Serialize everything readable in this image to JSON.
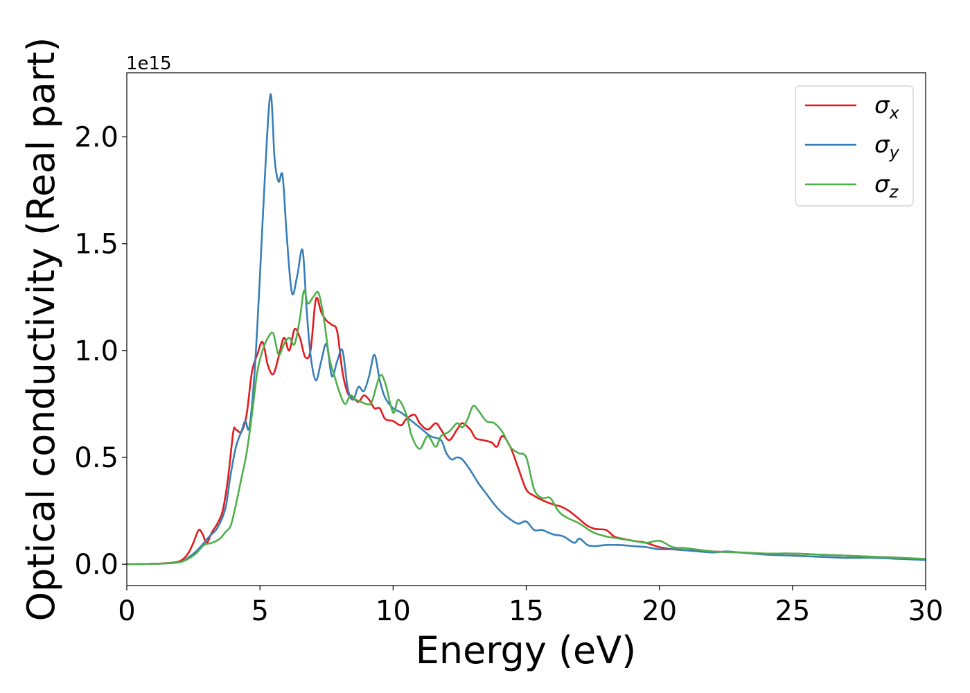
{
  "chart_data": {
    "type": "line",
    "xlabel": "Energy (eV)",
    "ylabel": "Optical conductivity (Real part)",
    "y_offset_label": "1e15",
    "xlim": [
      0,
      30
    ],
    "ylim": [
      -0.1,
      2.3
    ],
    "x_ticks": [
      0,
      5,
      10,
      15,
      20,
      25,
      30
    ],
    "x_tick_labels": [
      "0",
      "5",
      "10",
      "15",
      "20",
      "25",
      "30"
    ],
    "y_ticks": [
      0.0,
      0.5,
      1.0,
      1.5,
      2.0
    ],
    "y_tick_labels": [
      "0.0",
      "0.5",
      "1.0",
      "1.5",
      "2.0"
    ],
    "grid": false,
    "legend_position": "top-right",
    "series": [
      {
        "name": "σx",
        "symbol": "σ",
        "subscript": "x",
        "color": "#e41a1c",
        "x": [
          0,
          1,
          1.5,
          2,
          2.3,
          2.5,
          2.7,
          2.85,
          3.0,
          3.2,
          3.4,
          3.6,
          3.8,
          4.0,
          4.1,
          4.3,
          4.5,
          4.7,
          4.9,
          5.1,
          5.3,
          5.5,
          5.7,
          5.9,
          6.1,
          6.3,
          6.5,
          6.7,
          6.9,
          7.1,
          7.3,
          7.5,
          7.7,
          7.9,
          8.1,
          8.3,
          8.5,
          8.7,
          8.9,
          9.1,
          9.3,
          9.5,
          9.7,
          10.0,
          10.3,
          10.5,
          10.8,
          11.0,
          11.3,
          11.6,
          11.8,
          12.1,
          12.4,
          12.6,
          12.9,
          13.1,
          13.4,
          13.7,
          13.9,
          14.1,
          14.4,
          14.7,
          15.0,
          15.3,
          15.6,
          16.0,
          16.3,
          16.6,
          17.0,
          17.3,
          17.6,
          18.0,
          18.3,
          18.6,
          19.0,
          19.5,
          20.0,
          20.5,
          21.0,
          22.0,
          23.0,
          24.0,
          25.0,
          26.0,
          27.0,
          28.0,
          29.0,
          30.0
        ],
        "values": [
          0.0,
          0.002,
          0.005,
          0.015,
          0.05,
          0.1,
          0.16,
          0.14,
          0.1,
          0.15,
          0.19,
          0.25,
          0.4,
          0.62,
          0.63,
          0.62,
          0.7,
          0.9,
          0.98,
          1.04,
          0.93,
          0.89,
          0.97,
          1.06,
          1.0,
          1.1,
          1.06,
          0.97,
          1.0,
          1.24,
          1.18,
          1.14,
          1.12,
          1.09,
          0.9,
          0.8,
          0.78,
          0.76,
          0.79,
          0.77,
          0.73,
          0.73,
          0.68,
          0.67,
          0.65,
          0.68,
          0.7,
          0.66,
          0.63,
          0.66,
          0.63,
          0.58,
          0.63,
          0.66,
          0.63,
          0.59,
          0.58,
          0.57,
          0.55,
          0.6,
          0.55,
          0.45,
          0.35,
          0.32,
          0.3,
          0.28,
          0.27,
          0.25,
          0.21,
          0.18,
          0.165,
          0.16,
          0.13,
          0.12,
          0.11,
          0.1,
          0.08,
          0.07,
          0.065,
          0.06,
          0.055,
          0.05,
          0.05,
          0.045,
          0.04,
          0.035,
          0.03,
          0.022
        ]
      },
      {
        "name": "σy",
        "symbol": "σ",
        "subscript": "y",
        "color": "#377eb8",
        "x": [
          0,
          1,
          1.5,
          2,
          2.3,
          2.6,
          2.9,
          3.1,
          3.4,
          3.7,
          3.9,
          4.1,
          4.3,
          4.45,
          4.6,
          4.8,
          5.0,
          5.2,
          5.4,
          5.55,
          5.7,
          5.85,
          6.0,
          6.2,
          6.4,
          6.6,
          6.75,
          6.9,
          7.1,
          7.3,
          7.5,
          7.7,
          7.9,
          8.1,
          8.3,
          8.5,
          8.7,
          8.9,
          9.1,
          9.3,
          9.5,
          9.7,
          10.0,
          10.3,
          10.6,
          11.0,
          11.4,
          11.8,
          12.0,
          12.2,
          12.4,
          12.6,
          12.9,
          13.2,
          13.5,
          13.8,
          14.1,
          14.4,
          14.7,
          15.0,
          15.3,
          15.6,
          16.0,
          16.4,
          16.8,
          17.0,
          17.3,
          17.6,
          18.0,
          18.5,
          19.0,
          19.5,
          20.0,
          20.5,
          21.0,
          22.0,
          22.5,
          23.0,
          24.0,
          25.0,
          26.0,
          27.0,
          28.0,
          29.0,
          30.0
        ],
        "values": [
          0.0,
          0.002,
          0.004,
          0.01,
          0.03,
          0.06,
          0.1,
          0.13,
          0.17,
          0.26,
          0.42,
          0.55,
          0.62,
          0.67,
          0.64,
          0.9,
          1.35,
          1.85,
          2.2,
          1.9,
          1.79,
          1.82,
          1.55,
          1.27,
          1.35,
          1.47,
          1.2,
          0.98,
          0.86,
          0.95,
          1.03,
          0.88,
          0.95,
          1.0,
          0.82,
          0.77,
          0.83,
          0.81,
          0.88,
          0.98,
          0.86,
          0.78,
          0.73,
          0.71,
          0.68,
          0.64,
          0.6,
          0.58,
          0.52,
          0.49,
          0.5,
          0.49,
          0.44,
          0.38,
          0.33,
          0.28,
          0.24,
          0.21,
          0.19,
          0.2,
          0.16,
          0.16,
          0.14,
          0.13,
          0.1,
          0.12,
          0.09,
          0.085,
          0.09,
          0.09,
          0.085,
          0.08,
          0.07,
          0.07,
          0.065,
          0.055,
          0.06,
          0.055,
          0.045,
          0.04,
          0.035,
          0.03,
          0.03,
          0.025,
          0.02
        ]
      },
      {
        "name": "σz",
        "symbol": "σ",
        "subscript": "z",
        "color": "#4daf4a",
        "x": [
          0,
          1,
          1.5,
          2,
          2.3,
          2.6,
          2.9,
          3.2,
          3.5,
          3.7,
          3.9,
          4.1,
          4.3,
          4.5,
          4.7,
          4.9,
          5.1,
          5.3,
          5.5,
          5.7,
          5.9,
          6.1,
          6.3,
          6.5,
          6.65,
          6.8,
          7.0,
          7.2,
          7.4,
          7.6,
          7.8,
          8.0,
          8.2,
          8.4,
          8.6,
          8.8,
          9.0,
          9.2,
          9.5,
          9.7,
          10.0,
          10.2,
          10.5,
          10.7,
          11.0,
          11.3,
          11.6,
          11.8,
          12.1,
          12.4,
          12.6,
          12.8,
          13.0,
          13.2,
          13.5,
          13.8,
          14.1,
          14.4,
          14.7,
          15.0,
          15.3,
          15.6,
          15.9,
          16.2,
          16.5,
          17.0,
          17.5,
          18.0,
          18.5,
          19.0,
          19.5,
          20.0,
          20.5,
          21.0,
          22.0,
          23.0,
          24.0,
          25.0,
          26.0,
          27.0,
          28.0,
          29.0,
          30.0
        ],
        "values": [
          0.0,
          0.002,
          0.004,
          0.01,
          0.025,
          0.05,
          0.09,
          0.1,
          0.12,
          0.15,
          0.18,
          0.28,
          0.4,
          0.52,
          0.7,
          0.9,
          1.0,
          1.06,
          1.08,
          0.98,
          1.03,
          1.06,
          1.03,
          1.15,
          1.28,
          1.22,
          1.25,
          1.27,
          1.15,
          0.97,
          0.88,
          0.8,
          0.75,
          0.79,
          0.77,
          0.76,
          0.75,
          0.76,
          0.88,
          0.85,
          0.71,
          0.77,
          0.7,
          0.6,
          0.54,
          0.6,
          0.55,
          0.6,
          0.62,
          0.66,
          0.64,
          0.68,
          0.74,
          0.72,
          0.67,
          0.66,
          0.62,
          0.55,
          0.52,
          0.5,
          0.35,
          0.31,
          0.31,
          0.25,
          0.22,
          0.19,
          0.15,
          0.13,
          0.12,
          0.11,
          0.1,
          0.11,
          0.08,
          0.075,
          0.06,
          0.055,
          0.05,
          0.05,
          0.045,
          0.04,
          0.035,
          0.03,
          0.025
        ]
      }
    ]
  }
}
